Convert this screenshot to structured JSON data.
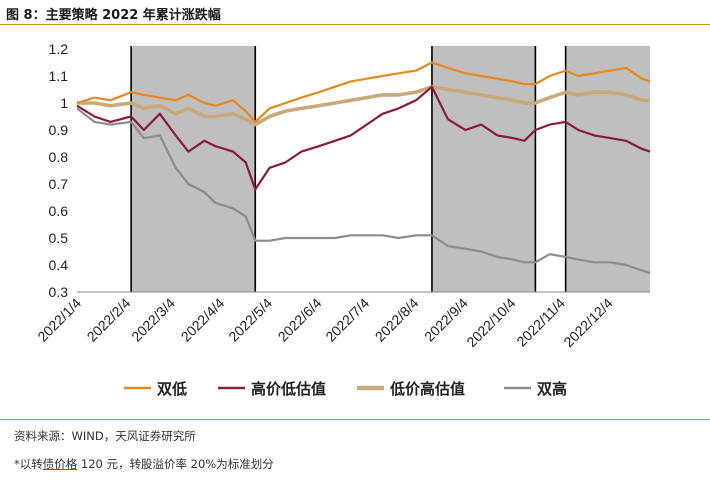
{
  "header": {
    "title": "图 8：主要策略 2022 年累计涨跌幅"
  },
  "footer": {
    "source": "资料来源：WIND，天风证券研究所",
    "note_prefix": "*以转",
    "note_link": "债价格",
    "note_suffix": " 120 元，转股溢价率 20%为标准划分"
  },
  "colors": {
    "rule": "#d98c2b",
    "shade": "#bfbfbf"
  },
  "chart_data": {
    "type": "line",
    "title": "",
    "xlabel": "",
    "ylabel": "",
    "ylim": [
      0.3,
      1.2
    ],
    "yticks": [
      "0.3",
      "0.4",
      "0.5",
      "0.6",
      "0.7",
      "0.8",
      "0.9",
      "1",
      "1.1",
      "1.2"
    ],
    "xticks": [
      "2022/1/4",
      "2022/2/4",
      "2022/3/4",
      "2022/4/4",
      "2022/5/4",
      "2022/6/4",
      "2022/7/4",
      "2022/8/4",
      "2022/9/4",
      "2022/10/4",
      "2022/11/4",
      "2022/12/4"
    ],
    "xrange": [
      "2022/1/4",
      "2022/12/30"
    ],
    "grid": false,
    "legend_position": "bottom",
    "shaded_periods": [
      [
        "2022/2/7",
        "2022/4/26"
      ],
      [
        "2022/8/15",
        "2022/10/19"
      ],
      [
        "2022/11/7",
        "2022/12/30"
      ]
    ],
    "series": [
      {
        "name": "双低",
        "color": "#e8891f",
        "dates": [
          "2022/1/4",
          "2022/1/15",
          "2022/1/25",
          "2022/2/7",
          "2022/2/15",
          "2022/2/25",
          "2022/3/7",
          "2022/3/15",
          "2022/3/25",
          "2022/4/1",
          "2022/4/12",
          "2022/4/20",
          "2022/4/26",
          "2022/5/5",
          "2022/5/15",
          "2022/5/25",
          "2022/6/5",
          "2022/6/15",
          "2022/6/25",
          "2022/7/5",
          "2022/7/15",
          "2022/7/25",
          "2022/8/5",
          "2022/8/15",
          "2022/8/25",
          "2022/9/5",
          "2022/9/15",
          "2022/9/25",
          "2022/10/5",
          "2022/10/12",
          "2022/10/19",
          "2022/10/28",
          "2022/11/7",
          "2022/11/15",
          "2022/11/25",
          "2022/12/5",
          "2022/12/15",
          "2022/12/25",
          "2022/12/30"
        ],
        "values": [
          1.0,
          1.02,
          1.01,
          1.04,
          1.03,
          1.02,
          1.01,
          1.03,
          1.0,
          0.99,
          1.01,
          0.97,
          0.93,
          0.98,
          1.0,
          1.02,
          1.04,
          1.06,
          1.08,
          1.09,
          1.1,
          1.11,
          1.12,
          1.15,
          1.13,
          1.11,
          1.1,
          1.09,
          1.08,
          1.07,
          1.07,
          1.1,
          1.12,
          1.1,
          1.11,
          1.12,
          1.13,
          1.09,
          1.08
        ]
      },
      {
        "name": "高价低估值",
        "color": "#8b1a3a",
        "dates": [
          "2022/1/4",
          "2022/1/15",
          "2022/1/25",
          "2022/2/7",
          "2022/2/15",
          "2022/2/25",
          "2022/3/7",
          "2022/3/15",
          "2022/3/25",
          "2022/4/1",
          "2022/4/12",
          "2022/4/20",
          "2022/4/26",
          "2022/5/5",
          "2022/5/15",
          "2022/5/25",
          "2022/6/5",
          "2022/6/15",
          "2022/6/25",
          "2022/7/5",
          "2022/7/15",
          "2022/7/25",
          "2022/8/5",
          "2022/8/15",
          "2022/8/25",
          "2022/9/5",
          "2022/9/15",
          "2022/9/25",
          "2022/10/5",
          "2022/10/12",
          "2022/10/19",
          "2022/10/28",
          "2022/11/7",
          "2022/11/15",
          "2022/11/25",
          "2022/12/5",
          "2022/12/15",
          "2022/12/25",
          "2022/12/30"
        ],
        "values": [
          0.99,
          0.95,
          0.93,
          0.95,
          0.9,
          0.96,
          0.88,
          0.82,
          0.86,
          0.84,
          0.82,
          0.78,
          0.68,
          0.76,
          0.78,
          0.82,
          0.84,
          0.86,
          0.88,
          0.92,
          0.96,
          0.98,
          1.01,
          1.06,
          0.94,
          0.9,
          0.92,
          0.88,
          0.87,
          0.86,
          0.9,
          0.92,
          0.93,
          0.9,
          0.88,
          0.87,
          0.86,
          0.83,
          0.82
        ]
      },
      {
        "name": "低价高估值",
        "color": "#c8a97a",
        "dates": [
          "2022/1/4",
          "2022/1/15",
          "2022/1/25",
          "2022/2/7",
          "2022/2/15",
          "2022/2/25",
          "2022/3/7",
          "2022/3/15",
          "2022/3/25",
          "2022/4/1",
          "2022/4/12",
          "2022/4/20",
          "2022/4/26",
          "2022/5/5",
          "2022/5/15",
          "2022/5/25",
          "2022/6/5",
          "2022/6/15",
          "2022/6/25",
          "2022/7/5",
          "2022/7/15",
          "2022/7/25",
          "2022/8/5",
          "2022/8/15",
          "2022/8/25",
          "2022/9/5",
          "2022/9/15",
          "2022/9/25",
          "2022/10/5",
          "2022/10/12",
          "2022/10/19",
          "2022/10/28",
          "2022/11/7",
          "2022/11/15",
          "2022/11/25",
          "2022/12/5",
          "2022/12/15",
          "2022/12/25",
          "2022/12/30"
        ],
        "values": [
          1.0,
          1.0,
          0.99,
          1.0,
          0.98,
          0.99,
          0.96,
          0.98,
          0.95,
          0.95,
          0.96,
          0.94,
          0.92,
          0.95,
          0.97,
          0.98,
          0.99,
          1.0,
          1.01,
          1.02,
          1.03,
          1.03,
          1.04,
          1.06,
          1.05,
          1.04,
          1.03,
          1.02,
          1.01,
          1.0,
          1.0,
          1.02,
          1.04,
          1.03,
          1.04,
          1.04,
          1.03,
          1.01,
          1.01
        ]
      },
      {
        "name": "双高",
        "color": "#8c8c8c",
        "dates": [
          "2022/1/4",
          "2022/1/15",
          "2022/1/25",
          "2022/2/7",
          "2022/2/15",
          "2022/2/25",
          "2022/3/7",
          "2022/3/15",
          "2022/3/25",
          "2022/4/1",
          "2022/4/12",
          "2022/4/20",
          "2022/4/26",
          "2022/5/5",
          "2022/5/15",
          "2022/5/25",
          "2022/6/5",
          "2022/6/15",
          "2022/6/25",
          "2022/7/5",
          "2022/7/15",
          "2022/7/25",
          "2022/8/5",
          "2022/8/15",
          "2022/8/25",
          "2022/9/5",
          "2022/9/15",
          "2022/9/25",
          "2022/10/5",
          "2022/10/12",
          "2022/10/19",
          "2022/10/28",
          "2022/11/7",
          "2022/11/15",
          "2022/11/25",
          "2022/12/5",
          "2022/12/15",
          "2022/12/25",
          "2022/12/30"
        ],
        "values": [
          0.98,
          0.93,
          0.92,
          0.93,
          0.87,
          0.88,
          0.76,
          0.7,
          0.67,
          0.63,
          0.61,
          0.58,
          0.49,
          0.49,
          0.5,
          0.5,
          0.5,
          0.5,
          0.51,
          0.51,
          0.51,
          0.5,
          0.51,
          0.51,
          0.47,
          0.46,
          0.45,
          0.43,
          0.42,
          0.41,
          0.41,
          0.44,
          0.43,
          0.42,
          0.41,
          0.41,
          0.4,
          0.38,
          0.37
        ]
      }
    ]
  }
}
